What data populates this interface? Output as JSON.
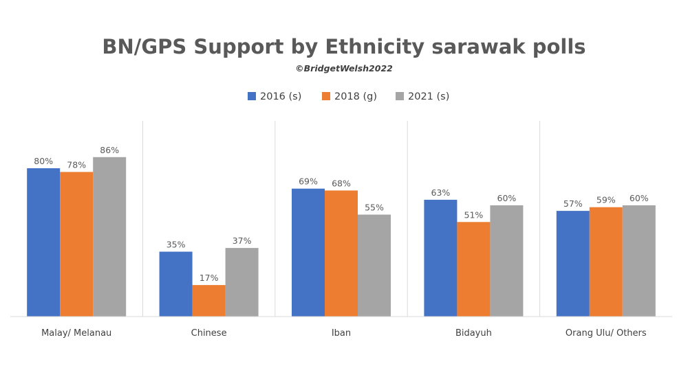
{
  "chart_data": {
    "type": "bar",
    "title": "BN/GPS Support by Ethnicity sarawak polls",
    "subtitle": "©BridgetWelsh2022",
    "xlabel": "",
    "ylabel": "",
    "ylim": [
      0,
      100
    ],
    "grid": false,
    "legend_position": "top",
    "value_suffix": "%",
    "categories": [
      "Malay/ Melanau",
      "Chinese",
      "Iban",
      "Bidayuh",
      "Orang Ulu/ Others"
    ],
    "series": [
      {
        "name": "2016 (s)",
        "color": "#4472c4",
        "values": [
          80,
          35,
          69,
          63,
          57
        ]
      },
      {
        "name": "2018 (g)",
        "color": "#ed7d31",
        "values": [
          78,
          17,
          68,
          51,
          59
        ]
      },
      {
        "name": "2021 (s)",
        "color": "#a5a5a5",
        "values": [
          86,
          37,
          55,
          60,
          60
        ]
      }
    ]
  }
}
